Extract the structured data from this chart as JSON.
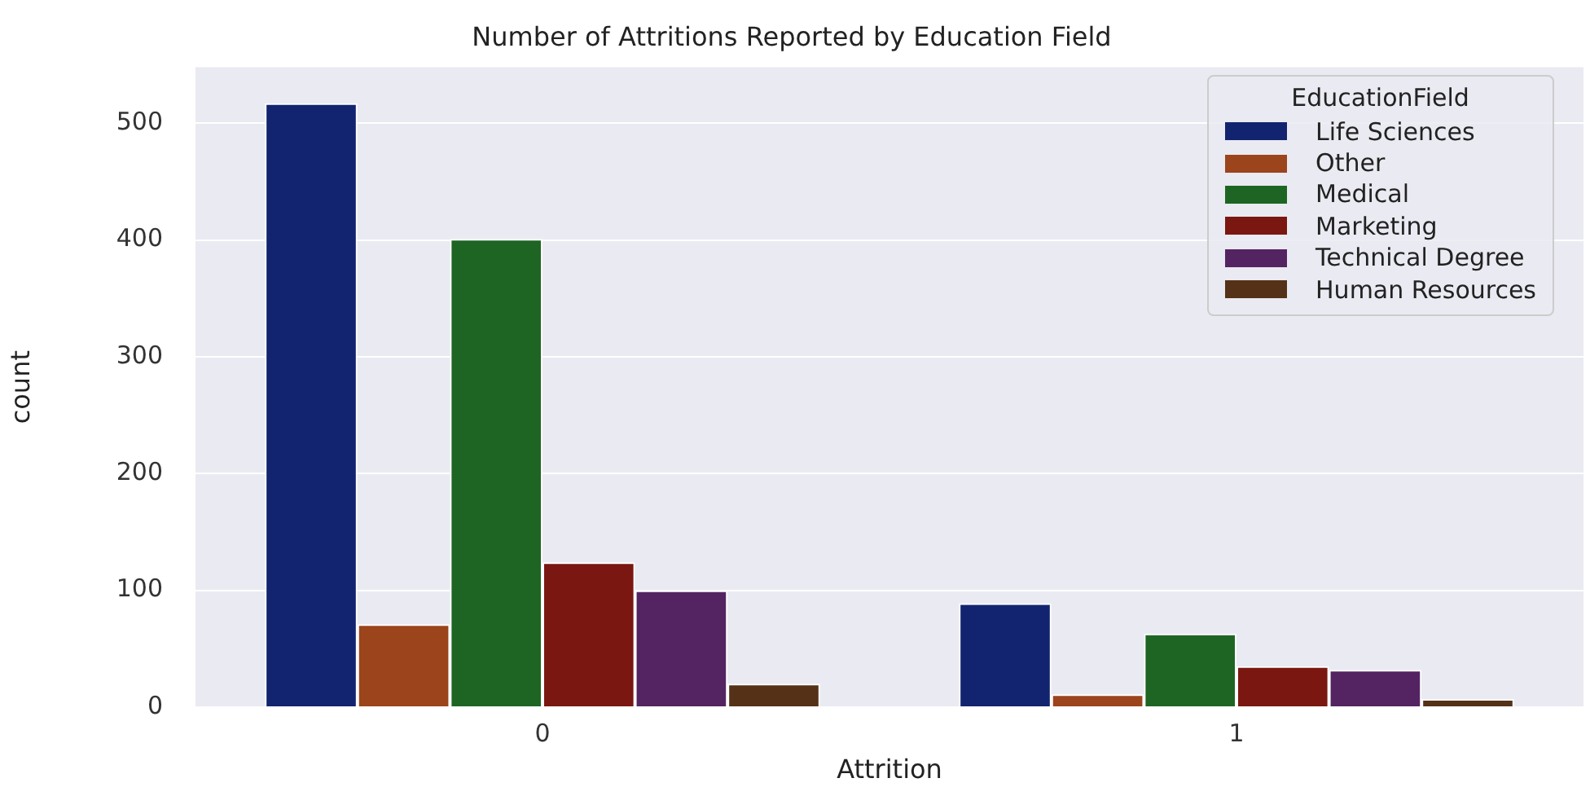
{
  "chart_data": {
    "type": "bar",
    "title": "Number of Attritions Reported by Education Field",
    "xlabel": "Attrition",
    "ylabel": "count",
    "legend_title": "EducationField",
    "categories": [
      "0",
      "1"
    ],
    "series": [
      {
        "name": "Life Sciences",
        "color": "#12246f",
        "values": [
          517,
          89
        ]
      },
      {
        "name": "Other",
        "color": "#9c441c",
        "values": [
          71,
          11
        ]
      },
      {
        "name": "Medical",
        "color": "#1e6524",
        "values": [
          401,
          63
        ]
      },
      {
        "name": "Marketing",
        "color": "#7a1710",
        "values": [
          124,
          35
        ]
      },
      {
        "name": "Technical Degree",
        "color": "#542462",
        "values": [
          100,
          32
        ]
      },
      {
        "name": "Human Resources",
        "color": "#553117",
        "values": [
          20,
          7
        ]
      }
    ],
    "ylim": [
      0,
      548
    ],
    "yticks": [
      0,
      100,
      200,
      300,
      400,
      500
    ],
    "grid": "y",
    "legend": "top right"
  }
}
